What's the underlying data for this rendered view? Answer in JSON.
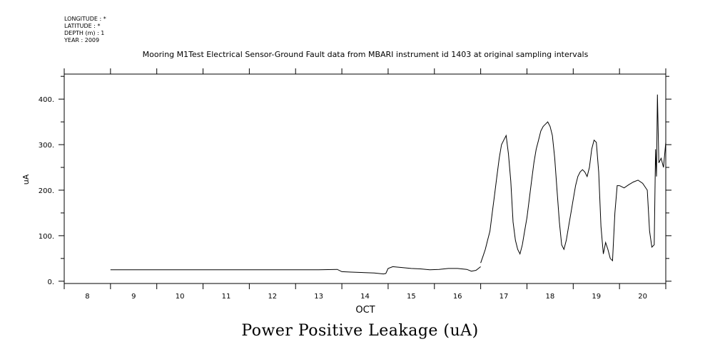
{
  "metadata": {
    "longitude": "LONGITUDE : *",
    "latitude": "LATITUDE : *",
    "depth": "DEPTH (m) : 1",
    "year": "YEAR : 2009"
  },
  "caption": "Power Positive Leakage (uA)",
  "chart_data": {
    "type": "line",
    "title": "Mooring M1Test Electrical Sensor-Ground Fault data from MBARI instrument id 1403 at original sampling intervals",
    "xlabel": "OCT",
    "ylabel": "uA",
    "xlim": [
      7.5,
      20.5
    ],
    "ylim": [
      -5,
      455
    ],
    "x_ticks": [
      "8",
      "9",
      "10",
      "11",
      "12",
      "13",
      "14",
      "15",
      "16",
      "17",
      "18",
      "19",
      "20"
    ],
    "y_ticks": [
      "0.",
      "100.",
      "200.",
      "300.",
      "400."
    ],
    "grid": false,
    "series": [
      {
        "x": [
          8.5,
          9.0,
          9.5,
          10.0,
          10.5,
          11.0,
          11.5,
          12.0,
          12.5,
          13.0,
          13.4,
          13.5,
          13.7,
          14.0,
          14.2,
          14.4,
          14.45,
          14.5,
          14.6,
          14.8,
          15.0,
          15.2,
          15.4,
          15.6,
          15.8,
          16.0,
          16.2,
          16.3,
          16.4,
          16.5
        ],
        "values": [
          25,
          25,
          25,
          25,
          25,
          25,
          25,
          25,
          25,
          25,
          26,
          21,
          20,
          19,
          18,
          16,
          17,
          28,
          32,
          30,
          28,
          27,
          25,
          26,
          28,
          28,
          26,
          22,
          24,
          32
        ]
      },
      {
        "x": [
          16.5,
          16.55,
          16.6,
          16.65,
          16.7,
          16.75,
          16.8,
          16.85,
          16.9,
          16.95,
          17.0,
          17.05,
          17.1,
          17.15,
          17.2,
          17.25,
          17.3,
          17.35,
          17.4,
          17.45,
          17.5,
          17.55,
          17.6,
          17.65,
          17.7,
          17.75,
          17.8,
          17.85,
          17.9,
          17.95,
          18.0,
          18.05,
          18.1,
          18.15,
          18.2,
          18.25,
          18.3,
          18.35,
          18.4,
          18.45,
          18.5,
          18.55,
          18.6,
          18.65,
          18.7,
          18.75,
          18.8,
          18.85,
          18.9,
          18.95,
          19.0,
          19.05,
          19.1,
          19.15,
          19.2,
          19.25,
          19.3,
          19.35,
          19.4,
          19.45,
          19.5
        ],
        "values": [
          40,
          55,
          70,
          90,
          110,
          150,
          190,
          230,
          270,
          300,
          310,
          320,
          280,
          220,
          130,
          90,
          70,
          60,
          80,
          110,
          140,
          180,
          220,
          260,
          290,
          310,
          330,
          340,
          345,
          350,
          340,
          320,
          270,
          200,
          130,
          80,
          70,
          90,
          120,
          150,
          180,
          210,
          230,
          240,
          245,
          240,
          230,
          250,
          290,
          310,
          305,
          240,
          120,
          60,
          85,
          70,
          50,
          45,
          150,
          210,
          210
        ]
      },
      {
        "x": [
          19.5,
          19.6,
          19.7,
          19.8,
          19.9,
          20.0,
          20.1,
          20.15,
          20.2,
          20.25,
          20.28,
          20.3,
          20.32,
          20.35,
          20.4,
          20.45,
          20.5
        ],
        "values": [
          210,
          205,
          212,
          218,
          222,
          215,
          200,
          110,
          75,
          80,
          290,
          230,
          410,
          260,
          270,
          250,
          305
        ]
      }
    ]
  }
}
